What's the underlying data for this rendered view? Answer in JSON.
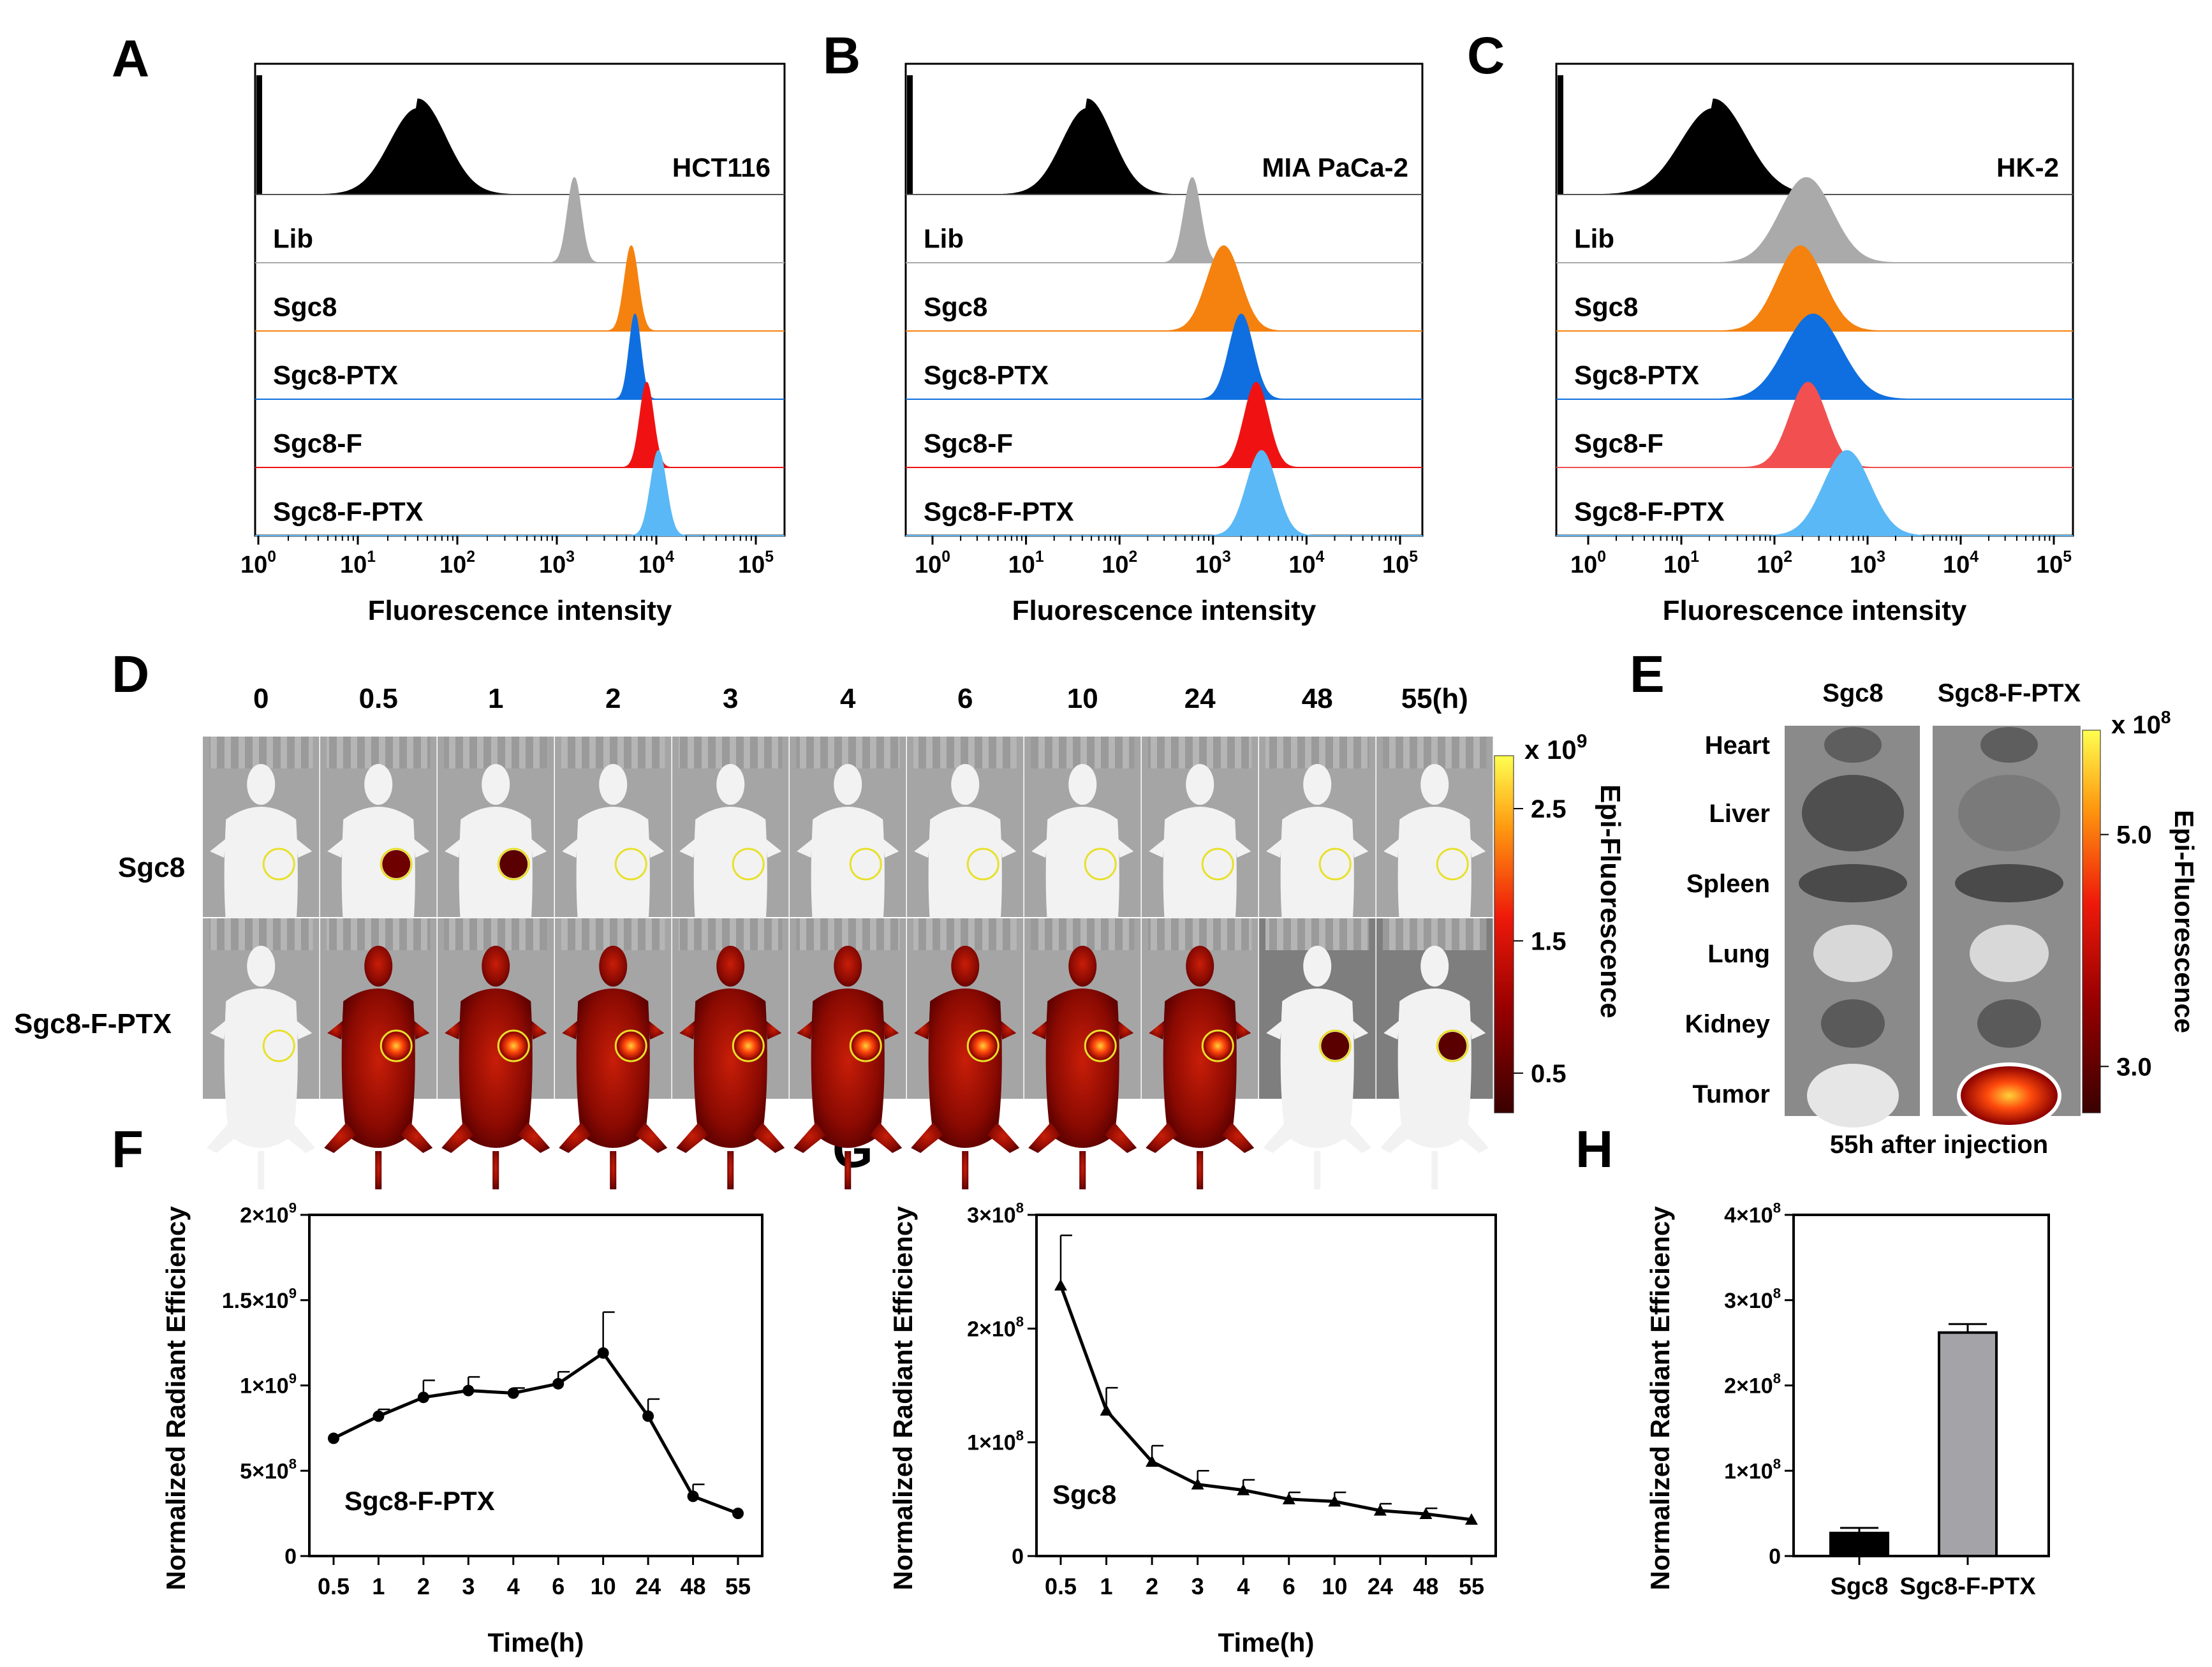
{
  "figure_letters": {
    "A": "A",
    "B": "B",
    "C": "C",
    "D": "D",
    "E": "E",
    "F": "F",
    "G": "G",
    "H": "H"
  },
  "colors": {
    "control": "#000000",
    "lib": "#aaaaaa",
    "sgc8": "#f5820f",
    "sgc8_ptx": "#0f6fe0",
    "sgc8_f": "#f01212",
    "sgc8_f_c": "#f25050",
    "sgc8_f_ptx": "#5ab8f6",
    "bar_sgc8": "#000000",
    "bar_sgc8_f_ptx": "#a3a3a8"
  },
  "chart_data": [
    {
      "panel": "A",
      "type": "area",
      "title": "HCT116",
      "xlabel": "Fluorescence intensity",
      "xscale": "log",
      "xlim": [
        1,
        100000
      ],
      "tick_labels": [
        "10^0",
        "10^1",
        "10^2",
        "10^3",
        "10^4",
        "10^5"
      ],
      "series": [
        {
          "name": "",
          "peak": 40,
          "width": 0.28
        },
        {
          "name": "Lib",
          "peak": 1500,
          "width": 0.07
        },
        {
          "name": "Sgc8",
          "peak": 5600,
          "width": 0.07
        },
        {
          "name": "Sgc8-PTX",
          "peak": 6100,
          "width": 0.06
        },
        {
          "name": "Sgc8-F",
          "peak": 8000,
          "width": 0.07
        },
        {
          "name": "Sgc8-F-PTX",
          "peak": 10500,
          "width": 0.08
        }
      ]
    },
    {
      "panel": "B",
      "type": "area",
      "title": "MIA PaCa-2",
      "xlabel": "Fluorescence intensity",
      "xscale": "log",
      "xlim": [
        1,
        100000
      ],
      "tick_labels": [
        "10^0",
        "10^1",
        "10^2",
        "10^3",
        "10^4",
        "10^5"
      ],
      "series": [
        {
          "name": "",
          "peak": 45,
          "width": 0.27
        },
        {
          "name": "Lib",
          "peak": 600,
          "width": 0.09
        },
        {
          "name": "Sgc8",
          "peak": 1300,
          "width": 0.18
        },
        {
          "name": "Sgc8-PTX",
          "peak": 2000,
          "width": 0.13
        },
        {
          "name": "Sgc8-F",
          "peak": 2900,
          "width": 0.13
        },
        {
          "name": "Sgc8-F-PTX",
          "peak": 3300,
          "width": 0.16
        }
      ]
    },
    {
      "panel": "C",
      "type": "area",
      "title": "HK-2",
      "xlabel": "Fluorescence intensity",
      "xscale": "log",
      "xlim": [
        1,
        100000
      ],
      "tick_labels": [
        "10^0",
        "10^1",
        "10^2",
        "10^3",
        "10^4",
        "10^5"
      ],
      "series": [
        {
          "name": "",
          "peak": 22,
          "width": 0.35
        },
        {
          "name": "Lib",
          "peak": 220,
          "width": 0.28
        },
        {
          "name": "Sgc8",
          "peak": 190,
          "width": 0.25
        },
        {
          "name": "Sgc8-PTX",
          "peak": 260,
          "width": 0.3
        },
        {
          "name": "Sgc8-F",
          "peak": 230,
          "width": 0.2
        },
        {
          "name": "Sgc8-F-PTX",
          "peak": 600,
          "width": 0.25
        }
      ]
    },
    {
      "panel": "F",
      "type": "line",
      "ylabel": "Normalized Radiant Efficiency",
      "xlabel": "Time(h)",
      "annotation": "Sgc8-F-PTX",
      "categories": [
        "0.5",
        "1",
        "2",
        "3",
        "4",
        "6",
        "10",
        "24",
        "48",
        "55"
      ],
      "values": [
        690000000,
        820000000,
        930000000,
        970000000,
        955000000,
        1010000000,
        1190000000,
        820000000,
        350000000,
        250000000
      ],
      "errors": [
        0,
        40000000,
        100000000,
        80000000,
        30000000,
        70000000,
        240000000,
        100000000,
        70000000,
        0
      ],
      "ylim": [
        0,
        2000000000
      ],
      "yticks": [
        0,
        500000000,
        1000000000,
        1500000000,
        2000000000
      ],
      "ytick_labels": [
        "0",
        "5×10^8",
        "1×10^9",
        "1.5×10^9",
        "2×10^9"
      ]
    },
    {
      "panel": "G",
      "type": "line",
      "ylabel": "Normalized Radiant Efficiency",
      "xlabel": "Time(h)",
      "annotation": "Sgc8",
      "categories": [
        "0.5",
        "1",
        "2",
        "3",
        "4",
        "6",
        "10",
        "24",
        "48",
        "55"
      ],
      "values": [
        238000000,
        128000000,
        83000000,
        63000000,
        58000000,
        50000000,
        48000000,
        40000000,
        37000000,
        32000000
      ],
      "errors": [
        44000000,
        20000000,
        14000000,
        12000000,
        9000000,
        6000000,
        8000000,
        6000000,
        5000000,
        0
      ],
      "ylim": [
        0,
        300000000
      ],
      "yticks": [
        0,
        100000000,
        200000000,
        300000000
      ],
      "ytick_labels": [
        "0",
        "1×10^8",
        "2×10^8",
        "3×10^8"
      ]
    },
    {
      "panel": "H",
      "type": "bar",
      "ylabel": "Normalized Radiant Efficiency",
      "categories": [
        "Sgc8",
        "Sgc8-F-PTX"
      ],
      "values": [
        27000000,
        262000000
      ],
      "errors": [
        6000000,
        10000000
      ],
      "ylim": [
        0,
        400000000
      ],
      "yticks": [
        0,
        100000000,
        200000000,
        300000000,
        400000000
      ],
      "ytick_labels": [
        "0",
        "1×10^8",
        "2×10^8",
        "3×10^8",
        "4×10^8"
      ]
    }
  ],
  "imaging_d": {
    "timepoints": [
      "0",
      "0.5",
      "1",
      "2",
      "3",
      "4",
      "6",
      "10",
      "24",
      "48",
      "55(h)"
    ],
    "rows": [
      "Sgc8",
      "Sgc8-F-PTX"
    ],
    "sgc8_signal": [
      0,
      0.85,
      0.3,
      0,
      0,
      0,
      0,
      0,
      0,
      0,
      0
    ],
    "ptx_signal": [
      0,
      0.8,
      0.75,
      0.8,
      0.8,
      0.85,
      0.8,
      0.85,
      0.8,
      0.35,
      0.3
    ],
    "colorbar": {
      "multiplier": "x 10",
      "exponent": "9",
      "label": "Epi-Fluorescence",
      "ticks": [
        "2.5",
        "1.5",
        "0.5"
      ],
      "tick_values": [
        2.5,
        1.5,
        0.5
      ],
      "range": [
        0.2,
        2.9
      ]
    }
  },
  "imaging_e": {
    "columns": [
      "Sgc8",
      "Sgc8-F-PTX"
    ],
    "organs": [
      "Heart",
      "Liver",
      "Spleen",
      "Lung",
      "Kidney",
      "Tumor"
    ],
    "caption": "55h after injection",
    "colorbar": {
      "multiplier": "x 10",
      "exponent": "8",
      "label": "Epi-Fluorescence",
      "ticks": [
        "5.0",
        "3.0"
      ],
      "tick_values": [
        5.0,
        3.0
      ],
      "range": [
        2.6,
        5.9
      ]
    }
  }
}
